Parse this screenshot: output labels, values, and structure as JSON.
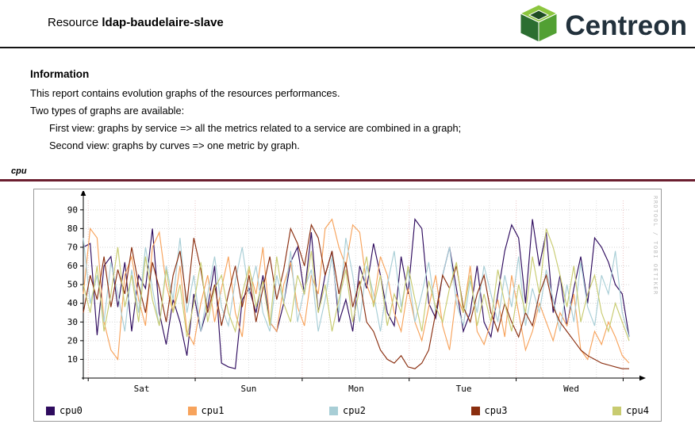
{
  "header": {
    "title_prefix": "Resource ",
    "resource_name": "ldap-baudelaire-slave",
    "logo_text": "Centreon"
  },
  "information": {
    "heading": "Information",
    "line1": "This report contains evolution graphs of the resources performances.",
    "line2": "Two types of graphs are available:",
    "line3": "First view: graphs by service => all the metrics related to a service are combined in a graph;",
    "line4": "Second view: graphs by curves => one metric by graph."
  },
  "section": {
    "label": "cpu"
  },
  "chart": {
    "watermark": "RRDTOOL / TOBI OETIKER"
  },
  "chart_data": {
    "type": "line",
    "title": "cpu",
    "x_tick_labels": [
      "Sat",
      "Sun",
      "Mon",
      "Tue",
      "Wed"
    ],
    "y_ticks": [
      10,
      20,
      30,
      40,
      50,
      60,
      70,
      80,
      90
    ],
    "ylim": [
      0,
      95
    ],
    "grid": true,
    "legend_position": "bottom",
    "series": [
      {
        "name": "cpu0",
        "color": "#2e0b5e",
        "values": [
          70,
          72,
          23,
          60,
          65,
          38,
          62,
          25,
          55,
          48,
          80,
          35,
          18,
          42,
          30,
          12,
          45,
          25,
          38,
          60,
          8,
          6,
          5,
          42,
          48,
          35,
          55,
          30,
          25,
          40,
          62,
          70,
          45,
          78,
          35,
          55,
          68,
          30,
          42,
          25,
          60,
          48,
          72,
          55,
          35,
          28,
          65,
          45,
          85,
          80,
          40,
          32,
          55,
          70,
          48,
          25,
          35,
          60,
          30,
          22,
          45,
          68,
          82,
          75,
          40,
          85,
          60,
          78,
          35,
          55,
          28,
          48,
          65,
          40,
          75,
          70,
          62,
          50,
          45,
          22
        ]
      },
      {
        "name": "cpu1",
        "color": "#f7a35c",
        "values": [
          45,
          80,
          75,
          30,
          15,
          10,
          55,
          65,
          42,
          28,
          70,
          78,
          50,
          35,
          60,
          25,
          18,
          40,
          55,
          30,
          48,
          65,
          35,
          22,
          58,
          45,
          70,
          30,
          25,
          50,
          62,
          38,
          28,
          55,
          45,
          80,
          85,
          70,
          60,
          82,
          78,
          50,
          40,
          65,
          55,
          35,
          25,
          48,
          30,
          20,
          38,
          55,
          28,
          15,
          45,
          35,
          60,
          25,
          18,
          30,
          42,
          22,
          55,
          35,
          15,
          25,
          40,
          30,
          20,
          35,
          28,
          45,
          15,
          10,
          25,
          18,
          30,
          22,
          12,
          8
        ]
      },
      {
        "name": "cpu2",
        "color": "#a8ced6",
        "values": [
          75,
          40,
          55,
          30,
          62,
          45,
          25,
          58,
          35,
          70,
          48,
          28,
          60,
          42,
          75,
          35,
          55,
          25,
          45,
          65,
          38,
          28,
          52,
          70,
          45,
          60,
          35,
          25,
          55,
          40,
          68,
          30,
          48,
          58,
          25,
          42,
          65,
          35,
          75,
          55,
          30,
          60,
          45,
          25,
          50,
          68,
          38,
          58,
          30,
          45,
          62,
          35,
          55,
          70,
          40,
          28,
          52,
          35,
          60,
          45,
          30,
          55,
          38,
          65,
          28,
          48,
          35,
          58,
          42,
          25,
          50,
          30,
          62,
          38,
          28,
          55,
          45,
          68,
          35,
          22
        ]
      },
      {
        "name": "cpu3",
        "color": "#8a2e0f",
        "values": [
          35,
          55,
          42,
          65,
          38,
          58,
          45,
          70,
          50,
          35,
          62,
          48,
          30,
          55,
          68,
          40,
          75,
          58,
          35,
          50,
          28,
          45,
          60,
          38,
          55,
          30,
          48,
          65,
          42,
          58,
          80,
          72,
          60,
          82,
          75,
          55,
          68,
          45,
          62,
          38,
          52,
          30,
          25,
          15,
          10,
          8,
          12,
          6,
          5,
          8,
          15,
          35,
          55,
          48,
          60,
          38,
          30,
          45,
          55,
          35,
          25,
          40,
          30,
          22,
          35,
          28,
          45,
          55,
          38,
          30,
          25,
          20,
          15,
          12,
          10,
          8,
          7,
          6,
          5,
          5
        ]
      },
      {
        "name": "cpu4",
        "color": "#c8cb70",
        "values": [
          50,
          35,
          60,
          25,
          45,
          70,
          38,
          55,
          30,
          65,
          42,
          28,
          58,
          35,
          50,
          22,
          40,
          62,
          30,
          48,
          55,
          35,
          25,
          45,
          60,
          38,
          52,
          28,
          65,
          40,
          30,
          55,
          45,
          68,
          35,
          50,
          25,
          42,
          58,
          30,
          48,
          65,
          38,
          55,
          28,
          45,
          35,
          60,
          42,
          25,
          52,
          38,
          30,
          48,
          62,
          35,
          55,
          28,
          45,
          30,
          58,
          40,
          25,
          50,
          35,
          65,
          45,
          80,
          70,
          55,
          38,
          60,
          30,
          45,
          55,
          35,
          25,
          40,
          30,
          20
        ]
      }
    ]
  }
}
